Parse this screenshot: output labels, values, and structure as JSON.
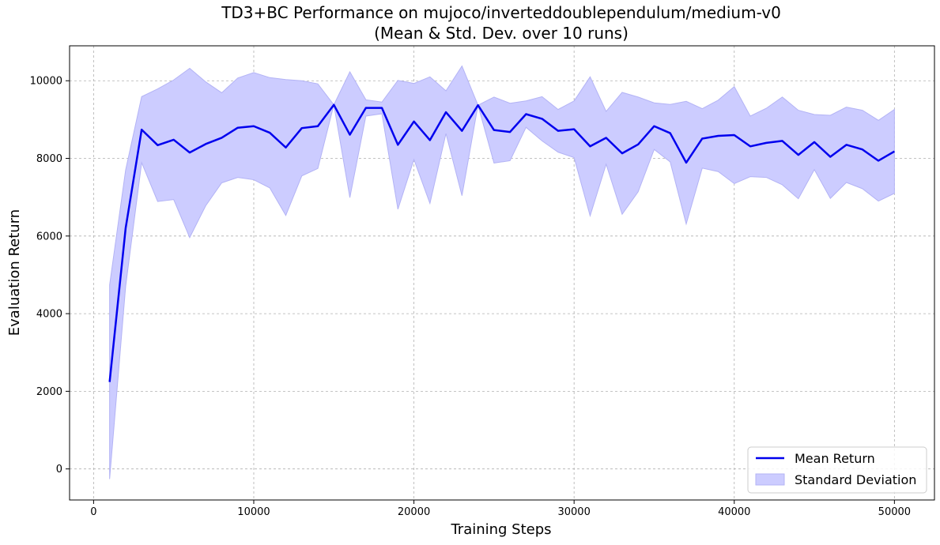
{
  "chart_data": {
    "type": "line",
    "title": "TD3+BC Performance on mujoco/inverteddoublependulum/medium-v0",
    "subtitle": "(Mean & Std. Dev. over 10 runs)",
    "xlabel": "Training Steps",
    "ylabel": "Evaluation Return",
    "xlim": [
      -1500,
      52500
    ],
    "ylim": [
      -800,
      10900
    ],
    "xticks": [
      0,
      10000,
      20000,
      30000,
      40000,
      50000
    ],
    "yticks": [
      0,
      2000,
      4000,
      6000,
      8000,
      10000
    ],
    "grid": true,
    "legend_position": "bottom-right",
    "colors": {
      "mean": "#0000ee",
      "band": "#ccccff",
      "band_edge": "#b3b3f5"
    },
    "x": [
      1000,
      2000,
      3000,
      4000,
      5000,
      6000,
      7000,
      8000,
      9000,
      10000,
      11000,
      12000,
      13000,
      14000,
      15000,
      16000,
      17000,
      18000,
      19000,
      20000,
      21000,
      22000,
      23000,
      24000,
      25000,
      26000,
      27000,
      28000,
      29000,
      30000,
      31000,
      32000,
      33000,
      34000,
      35000,
      36000,
      37000,
      38000,
      39000,
      40000,
      41000,
      42000,
      43000,
      44000,
      45000,
      46000,
      47000,
      48000,
      49000,
      50000
    ],
    "series": [
      {
        "name": "Mean Return",
        "kind": "line",
        "values": [
          2240,
          6200,
          8740,
          8340,
          8480,
          8150,
          8370,
          8530,
          8790,
          8830,
          8660,
          8280,
          8780,
          8830,
          9380,
          8610,
          9300,
          9300,
          8350,
          8950,
          8470,
          9190,
          8710,
          9370,
          8730,
          8680,
          9140,
          9020,
          8710,
          8750,
          8310,
          8530,
          8130,
          8360,
          8830,
          8650,
          7890,
          8510,
          8580,
          8600,
          8310,
          8400,
          8450,
          8090,
          8420,
          8040,
          8350,
          8230,
          7940,
          8180
        ]
      },
      {
        "name": "Standard Deviation",
        "kind": "band",
        "upper": [
          4740,
          7700,
          9590,
          9790,
          10020,
          10320,
          9970,
          9690,
          10070,
          10210,
          10080,
          10030,
          10000,
          9920,
          9380,
          10230,
          9510,
          9450,
          10010,
          9930,
          10100,
          9740,
          10380,
          9370,
          9580,
          9420,
          9480,
          9590,
          9260,
          9480,
          10100,
          9210,
          9700,
          9580,
          9430,
          9390,
          9470,
          9280,
          9500,
          9850,
          9090,
          9290,
          9580,
          9240,
          9130,
          9110,
          9320,
          9240,
          8980,
          9260
        ],
        "lower": [
          -260,
          4700,
          7890,
          6890,
          6940,
          5960,
          6780,
          7370,
          7510,
          7450,
          7240,
          6530,
          7550,
          7740,
          9380,
          6990,
          9090,
          9150,
          6690,
          7970,
          6840,
          8640,
          7040,
          9370,
          7880,
          7940,
          8800,
          8450,
          8160,
          8020,
          6520,
          7850,
          6560,
          7140,
          8230,
          7910,
          6310,
          7750,
          7660,
          7350,
          7530,
          7510,
          7320,
          6960,
          7710,
          6970,
          7380,
          7220,
          6900,
          7100
        ]
      }
    ]
  }
}
